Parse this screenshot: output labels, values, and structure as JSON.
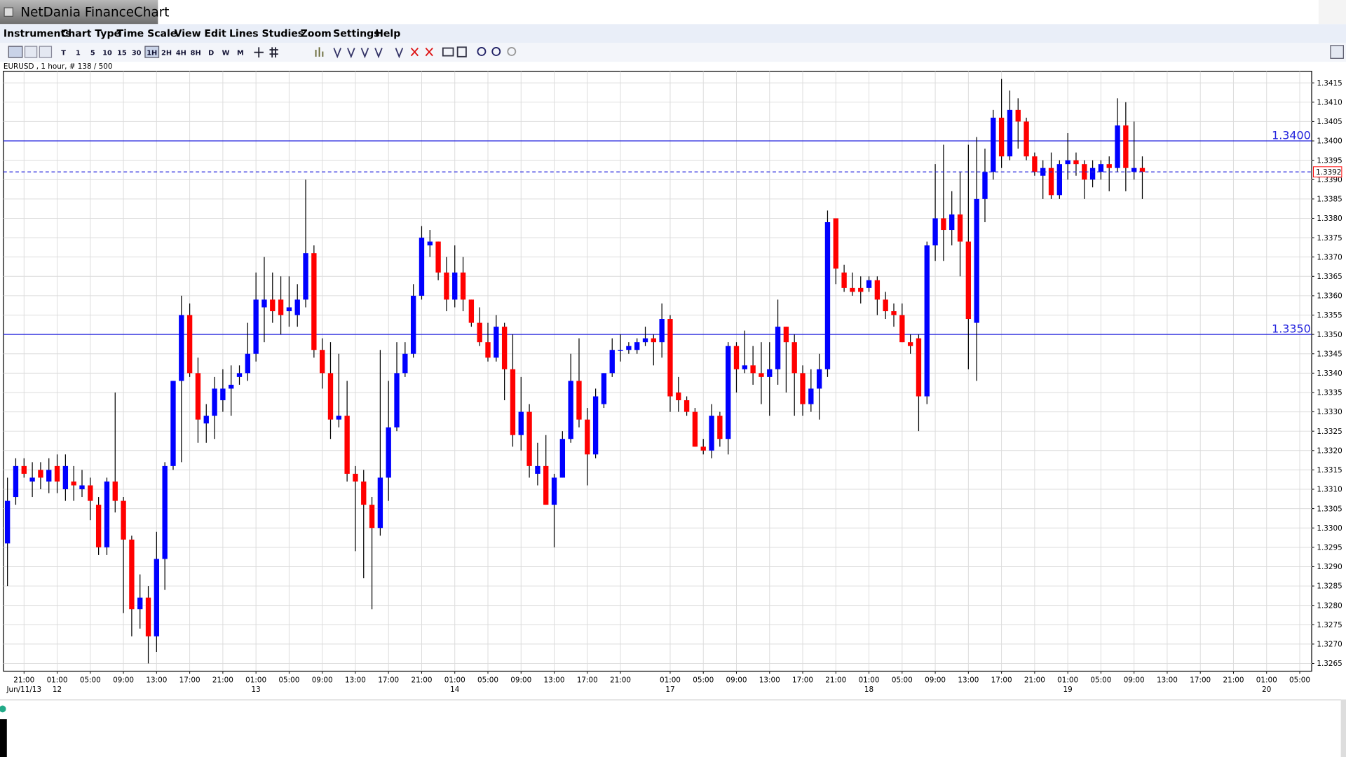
{
  "app_title": "NetDania FinanceChart",
  "menu": [
    "Instruments",
    "Chart Type",
    "Time Scale",
    "View",
    "Edit",
    "Lines",
    "Studies",
    "Zoom",
    "Settings",
    "Help"
  ],
  "toolbar_timeframes": [
    "T",
    "1",
    "5",
    "10",
    "15",
    "30",
    "1H",
    "2H",
    "4H",
    "8H",
    "D",
    "W",
    "M"
  ],
  "chart_info": "EURUSD , 1 hour, # 138 / 500",
  "chart_data": {
    "type": "candlestick",
    "categories": [
      null,
      null,
      "21:00",
      null,
      null,
      null,
      "01:00",
      null,
      null,
      null,
      "05:00",
      null,
      null,
      null,
      "09:00",
      null,
      null,
      null,
      "13:00",
      null,
      null,
      null,
      "17:00",
      null,
      null,
      null,
      "21:00",
      null,
      null,
      null,
      "01:00",
      null,
      null,
      null,
      "05:00",
      null,
      null,
      null,
      "09:00",
      null,
      null,
      null,
      "13:00",
      null,
      null,
      null,
      "17:00",
      null,
      null,
      null,
      "21:00",
      null,
      null,
      null,
      "01:00",
      null,
      null,
      null,
      "05:00",
      null,
      null,
      null,
      "09:00",
      null,
      null,
      null,
      "13:00",
      null,
      null,
      null,
      "17:00",
      null,
      null,
      null,
      "21:00",
      null,
      null,
      null,
      null,
      null,
      "01:00",
      null,
      null,
      null,
      "05:00",
      null,
      null,
      null,
      "09:00",
      null,
      null,
      null,
      "13:00",
      null,
      null,
      null,
      "17:00",
      null,
      null,
      null,
      "21:00",
      null,
      null,
      null,
      "01:00",
      null,
      null,
      null,
      "05:00",
      null,
      null,
      null,
      "09:00",
      null,
      null,
      null,
      "13:00",
      null,
      null,
      null,
      "17:00",
      null,
      null,
      null,
      "21:00",
      null,
      null,
      null,
      "01:00",
      null,
      null,
      null,
      "05:00",
      null,
      null,
      null,
      "09:00",
      null,
      null,
      null,
      "13:00",
      null,
      null,
      null,
      "17:00",
      null,
      null,
      null,
      "21:00",
      null,
      null,
      null,
      "01:00",
      null,
      null,
      null,
      "05:00"
    ],
    "dates": [
      null,
      null,
      "Jun/11/13",
      null,
      null,
      null,
      "12",
      null,
      null,
      null,
      null,
      null,
      null,
      null,
      null,
      null,
      null,
      null,
      null,
      null,
      null,
      null,
      null,
      null,
      null,
      null,
      null,
      null,
      null,
      null,
      "13",
      null,
      null,
      null,
      null,
      null,
      null,
      null,
      null,
      null,
      null,
      null,
      null,
      null,
      null,
      null,
      null,
      null,
      null,
      null,
      null,
      null,
      null,
      null,
      "14",
      null,
      null,
      null,
      null,
      null,
      null,
      null,
      null,
      null,
      null,
      null,
      null,
      null,
      null,
      null,
      null,
      null,
      null,
      null,
      null,
      null,
      null,
      null,
      null,
      null,
      "17",
      null,
      null,
      null,
      null,
      null,
      null,
      null,
      null,
      null,
      null,
      null,
      null,
      null,
      null,
      null,
      null,
      null,
      null,
      null,
      null,
      null,
      null,
      null,
      "18",
      null,
      null,
      null,
      null,
      null,
      null,
      null,
      null,
      null,
      null,
      null,
      null,
      null,
      null,
      null,
      null,
      null,
      null,
      null,
      null,
      null,
      null,
      null,
      "19",
      null,
      null,
      null,
      null,
      null,
      null,
      null,
      null,
      null,
      null,
      null,
      null,
      null,
      null,
      null,
      null,
      null,
      null,
      null,
      null,
      null,
      null,
      null,
      "20",
      null,
      null,
      null,
      null
    ],
    "open": [
      1.3296,
      1.3308,
      1.3316,
      1.3312,
      1.3315,
      1.3312,
      1.3316,
      1.331,
      1.3312,
      1.331,
      1.3311,
      1.3306,
      1.3295,
      1.3312,
      1.3307,
      1.3297,
      1.3279,
      1.3282,
      1.3272,
      1.3292,
      1.3316,
      1.3338,
      1.3355,
      1.334,
      1.3327,
      1.3329,
      1.3333,
      1.3336,
      1.3339,
      1.334,
      1.3345,
      1.3357,
      1.3359,
      1.3359,
      1.3356,
      1.3355,
      1.3359,
      1.3371,
      1.3346,
      1.334,
      1.3328,
      1.3329,
      1.3314,
      1.3312,
      1.3306,
      1.33,
      1.3313,
      1.3326,
      1.334,
      1.3345,
      1.336,
      1.3373,
      1.3374,
      1.3366,
      1.3359,
      1.3366,
      1.3359,
      1.3353,
      1.3348,
      1.3344,
      1.3352,
      1.3341,
      1.3324,
      1.333,
      1.3314,
      1.3316,
      1.3306,
      1.3313,
      1.3323,
      1.3338,
      1.3328,
      1.3319,
      1.3332,
      1.334,
      1.3346,
      1.3346,
      1.3346,
      1.3348,
      1.3349,
      1.3348,
      1.3354,
      1.3335,
      1.3333,
      1.333,
      1.3321,
      1.332,
      1.3329,
      1.3323,
      1.3347,
      1.3341,
      1.3342,
      1.334,
      1.3339,
      1.3341,
      1.3352,
      1.3348,
      1.334,
      1.3332,
      1.3336,
      1.3341,
      1.338,
      1.3366,
      1.3362,
      1.3362,
      1.3362,
      1.3364,
      1.3359,
      1.3356,
      1.3355,
      1.3348,
      1.3349,
      1.3334,
      1.3373,
      1.338,
      1.3377,
      1.3381,
      1.3374,
      1.3353,
      1.3385,
      1.3392,
      1.3406,
      1.3396,
      1.3408,
      1.3405,
      1.3396,
      1.3391,
      1.3393,
      1.3386,
      1.3394,
      1.3395,
      1.3394,
      1.339,
      1.3392,
      1.3394,
      1.3393,
      1.3404,
      1.3392,
      1.3393,
      null,
      null,
      null,
      null,
      null,
      null,
      null,
      null,
      null,
      null,
      null,
      null,
      null,
      null,
      null,
      null,
      null,
      null,
      null
    ],
    "high": [
      1.3313,
      1.3318,
      1.3318,
      1.3317,
      1.3317,
      1.3318,
      1.3319,
      1.3319,
      1.3316,
      1.3315,
      1.3313,
      1.3308,
      1.3313,
      1.3335,
      1.3308,
      1.3298,
      1.3288,
      1.3285,
      1.3299,
      1.3317,
      1.3338,
      1.336,
      1.3358,
      1.3344,
      1.3332,
      1.3339,
      1.3341,
      1.3342,
      1.3342,
      1.3353,
      1.3366,
      1.337,
      1.3366,
      1.3365,
      1.3365,
      1.3363,
      1.339,
      1.3373,
      1.3349,
      1.3348,
      1.3345,
      1.3338,
      1.3316,
      1.3315,
      1.3308,
      1.3346,
      1.3338,
      1.3348,
      1.3348,
      1.3363,
      1.3378,
      1.3377,
      1.3374,
      1.337,
      1.3373,
      1.337,
      1.3359,
      1.3357,
      1.3353,
      1.3355,
      1.3353,
      1.335,
      1.3339,
      1.3332,
      1.3322,
      1.3324,
      1.3314,
      1.3325,
      1.3345,
      1.3349,
      1.3331,
      1.3336,
      1.334,
      1.3349,
      1.335,
      1.3348,
      1.3349,
      1.3352,
      1.335,
      1.3358,
      1.3355,
      1.3339,
      1.3334,
      1.3331,
      1.3323,
      1.3332,
      1.333,
      1.3348,
      1.3348,
      1.3351,
      1.3347,
      1.3348,
      1.3348,
      1.3359,
      1.3352,
      1.335,
      1.3342,
      1.3341,
      1.3345,
      1.3382,
      1.338,
      1.3368,
      1.3366,
      1.3365,
      1.3365,
      1.3365,
      1.3361,
      1.3358,
      1.3358,
      1.335,
      1.335,
      1.3374,
      1.3394,
      1.3399,
      1.3387,
      1.3392,
      1.3399,
      1.3401,
      1.3398,
      1.3408,
      1.3416,
      1.3413,
      1.3411,
      1.3406,
      1.3397,
      1.3395,
      1.3397,
      1.3395,
      1.3402,
      1.3397,
      1.3395,
      1.3395,
      1.3395,
      1.3396,
      1.3411,
      1.341,
      1.3405,
      1.3396,
      null,
      null,
      null,
      null,
      null,
      null,
      null,
      null,
      null,
      null,
      null,
      null,
      null,
      null,
      null,
      null,
      null,
      null,
      null
    ],
    "low": [
      1.3285,
      1.3306,
      1.3313,
      1.3308,
      1.331,
      1.3309,
      1.3309,
      1.3307,
      1.3307,
      1.3308,
      1.3302,
      1.3293,
      1.3293,
      1.3304,
      1.3278,
      1.3272,
      1.3274,
      1.3265,
      1.3268,
      1.3284,
      1.3315,
      1.3317,
      1.3339,
      1.3322,
      1.3322,
      1.3323,
      1.333,
      1.3329,
      1.3337,
      1.3338,
      1.3343,
      1.3348,
      1.3353,
      1.335,
      1.3352,
      1.3352,
      1.3357,
      1.3344,
      1.3336,
      1.3323,
      1.3326,
      1.3312,
      1.3294,
      1.3287,
      1.3279,
      1.3298,
      1.3307,
      1.3325,
      1.3339,
      1.3344,
      1.3359,
      1.337,
      1.3364,
      1.3356,
      1.3357,
      1.3356,
      1.3352,
      1.3347,
      1.3343,
      1.3343,
      1.3333,
      1.3321,
      1.332,
      1.3313,
      1.3311,
      1.3306,
      1.3295,
      1.3313,
      1.3322,
      1.3326,
      1.3311,
      1.3318,
      1.3331,
      1.3339,
      1.3343,
      1.3345,
      1.3345,
      1.3347,
      1.3342,
      1.3344,
      1.333,
      1.333,
      1.3329,
      1.3321,
      1.3319,
      1.3318,
      1.3321,
      1.3319,
      1.3335,
      1.334,
      1.3337,
      1.3332,
      1.3329,
      1.3337,
      1.3335,
      1.3329,
      1.3329,
      1.333,
      1.3328,
      1.3339,
      1.3363,
      1.3361,
      1.336,
      1.3358,
      1.3361,
      1.3355,
      1.3354,
      1.3352,
      1.3348,
      1.3345,
      1.3325,
      1.3332,
      1.3369,
      1.3369,
      1.3373,
      1.3365,
      1.3341,
      1.3338,
      1.3379,
      1.339,
      1.3393,
      1.3395,
      1.3398,
      1.3395,
      1.3391,
      1.3385,
      1.3385,
      1.3385,
      1.339,
      1.3391,
      1.3385,
      1.3388,
      1.339,
      1.3387,
      1.3392,
      1.3387,
      1.339,
      1.3385,
      null,
      null,
      null,
      null,
      null,
      null,
      null,
      null,
      null,
      null,
      null,
      null,
      null,
      null,
      null,
      null,
      null,
      null,
      null
    ],
    "close": [
      1.3307,
      1.3316,
      1.3314,
      1.3313,
      1.3313,
      1.3315,
      1.3312,
      1.3316,
      1.3311,
      1.3311,
      1.3307,
      1.3295,
      1.3312,
      1.3307,
      1.3297,
      1.3279,
      1.3282,
      1.3272,
      1.3292,
      1.3316,
      1.3338,
      1.3355,
      1.334,
      1.3328,
      1.3329,
      1.3336,
      1.3336,
      1.3337,
      1.334,
      1.3345,
      1.3359,
      1.3359,
      1.3356,
      1.3355,
      1.3357,
      1.3359,
      1.3371,
      1.3346,
      1.334,
      1.3328,
      1.3329,
      1.3314,
      1.3312,
      1.3306,
      1.33,
      1.3313,
      1.3326,
      1.334,
      1.3345,
      1.336,
      1.3375,
      1.3374,
      1.3366,
      1.3359,
      1.3366,
      1.3359,
      1.3353,
      1.3348,
      1.3344,
      1.3352,
      1.3341,
      1.3324,
      1.333,
      1.3316,
      1.3316,
      1.3306,
      1.3313,
      1.3323,
      1.3338,
      1.3328,
      1.3319,
      1.3334,
      1.334,
      1.3346,
      1.3346,
      1.3347,
      1.3348,
      1.3349,
      1.3348,
      1.3354,
      1.3334,
      1.3333,
      1.333,
      1.3321,
      1.332,
      1.3329,
      1.3323,
      1.3347,
      1.3341,
      1.3342,
      1.334,
      1.3339,
      1.3341,
      1.3352,
      1.3348,
      1.334,
      1.3332,
      1.3336,
      1.3341,
      1.3379,
      1.3367,
      1.3362,
      1.3361,
      1.3361,
      1.3364,
      1.3359,
      1.3356,
      1.3355,
      1.3348,
      1.3347,
      1.3334,
      1.3373,
      1.338,
      1.3377,
      1.3381,
      1.3374,
      1.3354,
      1.3385,
      1.3392,
      1.3406,
      1.3396,
      1.3408,
      1.3405,
      1.3396,
      1.3392,
      1.3393,
      1.3386,
      1.3394,
      1.3395,
      1.3394,
      1.339,
      1.3393,
      1.3394,
      1.3393,
      1.3404,
      1.3393,
      1.3393,
      1.3392,
      null,
      null,
      null,
      null,
      null,
      null,
      null,
      null,
      null,
      null,
      null,
      null,
      null,
      null,
      null,
      null,
      null,
      null,
      null
    ],
    "up_color": "#0000ff",
    "down_color": "#ff0000",
    "wick_color": "#000000",
    "ylim": [
      1.3263,
      1.3418
    ],
    "yticks": [
      1.3265,
      {
        "value": 1.327,
        "label": "1.3270"
      },
      1.3275,
      {
        "value": 1.328,
        "label": "1.3280"
      },
      1.3285,
      {
        "value": 1.329,
        "label": "1.3290"
      },
      1.3295,
      {
        "value": 1.33,
        "label": "1.3300"
      },
      1.3305,
      {
        "value": 1.331,
        "label": "1.3310"
      },
      1.3315,
      {
        "value": 1.332,
        "label": "1.3320"
      },
      1.3325,
      {
        "value": 1.333,
        "label": "1.3330"
      },
      1.3335,
      {
        "value": 1.334,
        "label": "1.3340"
      },
      1.3345,
      {
        "value": 1.335,
        "label": "1.3350"
      },
      1.3355,
      {
        "value": 1.336,
        "label": "1.3360"
      },
      1.3365,
      {
        "value": 1.337,
        "label": "1.3370"
      },
      1.3375,
      {
        "value": 1.338,
        "label": "1.3380"
      },
      1.3385,
      {
        "value": 1.339,
        "label": "1.3390"
      },
      1.3395,
      {
        "value": 1.34,
        "label": "1.3400"
      },
      1.3405,
      {
        "value": 1.341,
        "label": "1.3410"
      },
      1.3415
    ],
    "hlines": [
      {
        "value": 1.34,
        "label": "1.3400"
      },
      {
        "value": 1.335,
        "label": "1.3350"
      }
    ],
    "hline_color": "#2222dd",
    "last_price": 1.3392,
    "grid": true
  }
}
